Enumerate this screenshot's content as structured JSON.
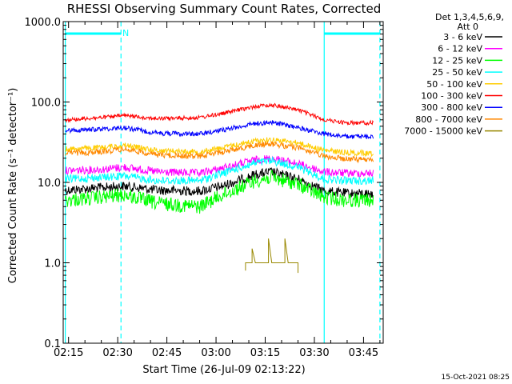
{
  "chart_data": {
    "type": "line",
    "title": "RHESSI Observing Summary Count Rates, Corrected",
    "xlabel": "Start Time (26-Jul-09 02:13:22)",
    "ylabel": "Corrected Count Rate (s⁻¹ detector⁻¹)",
    "y_scale": "log",
    "ylim": [
      0.1,
      1000
    ],
    "y_ticks": [
      0.1,
      1,
      10,
      100,
      1000
    ],
    "y_tick_labels": [
      "0.1",
      "1.0",
      "10.0",
      "100.0",
      "1000.0"
    ],
    "xlim": [
      "02:13:22",
      "03:51:00"
    ],
    "x_ticks": [
      "02:15",
      "02:30",
      "02:45",
      "03:00",
      "03:15",
      "03:30",
      "03:45"
    ],
    "x_tick_labels": [
      "02:15",
      "02:30",
      "02:45",
      "03:00",
      "03:15",
      "03:30",
      "03:45"
    ],
    "legend_header": [
      "Det 1,3,4,5,6,9,",
      "Att 0"
    ],
    "legend_placement": "right",
    "series": [
      {
        "name": "3 - 6 keV",
        "color": "#000000",
        "points": [
          [
            "02:14",
            8
          ],
          [
            "02:25",
            8.6
          ],
          [
            "02:32",
            9
          ],
          [
            "02:42",
            8
          ],
          [
            "02:55",
            7.8
          ],
          [
            "03:02",
            9
          ],
          [
            "03:12",
            12.5
          ],
          [
            "03:17",
            13.5
          ],
          [
            "03:25",
            11
          ],
          [
            "03:33",
            7.8
          ],
          [
            "03:40",
            7.3
          ],
          [
            "03:48",
            7.2
          ]
        ]
      },
      {
        "name": "6 - 12 keV",
        "color": "#ff00ff",
        "points": [
          [
            "02:14",
            14
          ],
          [
            "02:25",
            14.5
          ],
          [
            "02:32",
            15.5
          ],
          [
            "02:42",
            13.5
          ],
          [
            "02:55",
            13
          ],
          [
            "03:02",
            15
          ],
          [
            "03:12",
            19
          ],
          [
            "03:17",
            20
          ],
          [
            "03:25",
            17
          ],
          [
            "03:33",
            13.5
          ],
          [
            "03:40",
            13
          ],
          [
            "03:48",
            13
          ]
        ]
      },
      {
        "name": "12 - 25 keV",
        "color": "#00ff00",
        "points": [
          [
            "02:14",
            6
          ],
          [
            "02:25",
            6.5
          ],
          [
            "02:32",
            7
          ],
          [
            "02:42",
            5.5
          ],
          [
            "02:55",
            5
          ],
          [
            "03:02",
            7
          ],
          [
            "03:12",
            10.5
          ],
          [
            "03:17",
            11.5
          ],
          [
            "03:25",
            9.5
          ],
          [
            "03:33",
            6.5
          ],
          [
            "03:40",
            6
          ],
          [
            "03:48",
            6
          ]
        ]
      },
      {
        "name": "25 - 50 keV",
        "color": "#00ffff",
        "points": [
          [
            "02:14",
            11
          ],
          [
            "02:25",
            11.5
          ],
          [
            "02:32",
            12
          ],
          [
            "02:42",
            10.5
          ],
          [
            "02:55",
            10.5
          ],
          [
            "03:02",
            13
          ],
          [
            "03:12",
            17.5
          ],
          [
            "03:17",
            18.5
          ],
          [
            "03:25",
            15.5
          ],
          [
            "03:33",
            11
          ],
          [
            "03:40",
            10.5
          ],
          [
            "03:48",
            10.5
          ]
        ]
      },
      {
        "name": "50 - 100 keV",
        "color": "#ffcc00",
        "points": [
          [
            "02:14",
            26
          ],
          [
            "02:25",
            27
          ],
          [
            "02:32",
            29
          ],
          [
            "02:42",
            25
          ],
          [
            "02:55",
            24
          ],
          [
            "03:02",
            27
          ],
          [
            "03:12",
            33
          ],
          [
            "03:17",
            34
          ],
          [
            "03:25",
            31
          ],
          [
            "03:33",
            25
          ],
          [
            "03:40",
            23.5
          ],
          [
            "03:48",
            23
          ]
        ]
      },
      {
        "name": "100 - 300 keV",
        "color": "#ff0000",
        "points": [
          [
            "02:14",
            60
          ],
          [
            "02:25",
            64
          ],
          [
            "02:32",
            68
          ],
          [
            "02:42",
            62
          ],
          [
            "02:55",
            64
          ],
          [
            "03:02",
            72
          ],
          [
            "03:12",
            88
          ],
          [
            "03:17",
            92
          ],
          [
            "03:25",
            80
          ],
          [
            "03:33",
            60
          ],
          [
            "03:40",
            55
          ],
          [
            "03:48",
            55
          ]
        ]
      },
      {
        "name": "300 - 800 keV",
        "color": "#0000ff",
        "points": [
          [
            "02:14",
            44
          ],
          [
            "02:25",
            46
          ],
          [
            "02:32",
            48
          ],
          [
            "02:42",
            41
          ],
          [
            "02:55",
            40
          ],
          [
            "03:02",
            45
          ],
          [
            "03:12",
            54
          ],
          [
            "03:17",
            56
          ],
          [
            "03:25",
            48
          ],
          [
            "03:33",
            40
          ],
          [
            "03:40",
            37
          ],
          [
            "03:48",
            37
          ]
        ]
      },
      {
        "name": "800 - 7000 keV",
        "color": "#ff8800",
        "points": [
          [
            "02:14",
            23
          ],
          [
            "02:25",
            24
          ],
          [
            "02:32",
            26
          ],
          [
            "02:42",
            22
          ],
          [
            "02:55",
            21
          ],
          [
            "03:02",
            24
          ],
          [
            "03:12",
            29
          ],
          [
            "03:17",
            30
          ],
          [
            "03:25",
            27
          ],
          [
            "03:33",
            21
          ],
          [
            "03:40",
            19.5
          ],
          [
            "03:48",
            19
          ]
        ]
      },
      {
        "name": "7000 - 15000 keV",
        "color": "#998800",
        "points": [
          [
            "03:09",
            0.8
          ],
          [
            "03:09",
            1.0
          ],
          [
            "03:11",
            1.0
          ],
          [
            "03:11",
            1.5
          ],
          [
            "03:12",
            1.0
          ],
          [
            "03:16",
            1.0
          ],
          [
            "03:16",
            2.0
          ],
          [
            "03:17",
            1.0
          ],
          [
            "03:20",
            1.0
          ],
          [
            "03:21",
            1.0
          ],
          [
            "03:21",
            2.0
          ],
          [
            "03:22",
            1.0
          ],
          [
            "03:25",
            1.0
          ],
          [
            "03:25",
            0.75
          ]
        ]
      }
    ],
    "annotations": {
      "night_flag_label": "N",
      "vertical_markers": [
        {
          "time": "02:14",
          "color": "#00ffff",
          "style": "solid"
        },
        {
          "time": "02:31",
          "color": "#00ffff",
          "style": "dashed"
        },
        {
          "time": "03:33",
          "color": "#00ffff",
          "style": "solid"
        },
        {
          "time": "03:50",
          "color": "#00ffff",
          "style": "dashed"
        }
      ],
      "top_bars": [
        {
          "from": "02:14",
          "to": "02:31",
          "color": "#00ffff"
        },
        {
          "from": "03:33",
          "to": "03:50",
          "color": "#00ffff"
        }
      ]
    },
    "timestamp": "15-Oct-2021 08:25",
    "grid": false
  }
}
